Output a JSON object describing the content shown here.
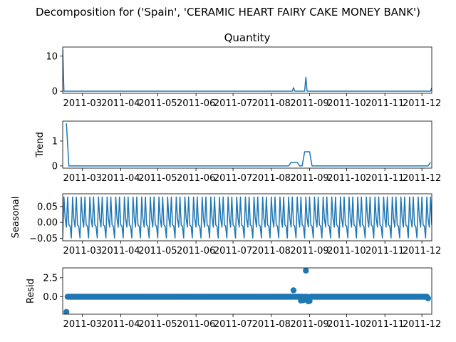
{
  "figure": {
    "suptitle": "Decomposition for ('Spain', 'CERAMIC HEART FAIRY CAKE MONEY BANK')"
  },
  "chart_data": [
    {
      "type": "line",
      "title": "Quantity",
      "ylabel": "",
      "color": "#1f77b4",
      "xlim": [
        "2011-02-13",
        "2011-12-09"
      ],
      "ylim": [
        -0.6,
        12.6
      ],
      "xticks": [
        "2011-03",
        "2011-04",
        "2011-05",
        "2011-06",
        "2011-07",
        "2011-08",
        "2011-09",
        "2011-10",
        "2011-11",
        "2011-12"
      ],
      "yticks": [
        0,
        10
      ],
      "x": [
        "2011-02-13",
        "2011-02-14",
        "2011-08-18",
        "2011-08-19",
        "2011-08-20",
        "2011-08-28",
        "2011-08-29",
        "2011-08-30",
        "2011-12-08",
        "2011-12-09"
      ],
      "y": [
        12,
        0,
        0,
        1,
        0,
        0,
        4,
        0,
        0,
        1
      ]
    },
    {
      "type": "line",
      "title": "",
      "ylabel": "Trend",
      "color": "#1f77b4",
      "xlim": [
        "2011-02-13",
        "2011-12-09"
      ],
      "ylim": [
        -0.09,
        1.8
      ],
      "xticks": [
        "2011-03",
        "2011-04",
        "2011-05",
        "2011-06",
        "2011-07",
        "2011-08",
        "2011-09",
        "2011-10",
        "2011-11",
        "2011-12"
      ],
      "yticks": [
        0,
        1
      ],
      "x": [
        "2011-02-16",
        "2011-02-18",
        "2011-08-15",
        "2011-08-17",
        "2011-08-22",
        "2011-08-24",
        "2011-08-26",
        "2011-08-28",
        "2011-09-01",
        "2011-09-03",
        "2011-12-06",
        "2011-12-08"
      ],
      "y": [
        1.71,
        0,
        0,
        0.14,
        0.14,
        0,
        0,
        0.57,
        0.57,
        0,
        0,
        0.14
      ]
    },
    {
      "type": "line",
      "title": "",
      "ylabel": "Seasonal",
      "color": "#1f77b4",
      "xlim": [
        "2011-02-13",
        "2011-12-09"
      ],
      "ylim": [
        -0.058,
        0.09
      ],
      "xticks": [
        "2011-03",
        "2011-04",
        "2011-05",
        "2011-06",
        "2011-07",
        "2011-08",
        "2011-09",
        "2011-10",
        "2011-11",
        "2011-12"
      ],
      "yticks": [
        -0.05,
        0.0,
        0.05
      ],
      "ytick_labels": [
        "−0.05",
        "0.00",
        "0.05"
      ],
      "x_start": "2011-02-13",
      "x_end": "2011-12-09",
      "period_days": 7,
      "weekly_pattern": [
        -0.049,
        0.08,
        0.012,
        -0.015,
        0.08,
        -0.008,
        -0.012
      ]
    },
    {
      "type": "scatter",
      "title": "",
      "ylabel": "Resid",
      "color": "#1f77b4",
      "xlim": [
        "2011-02-13",
        "2011-12-09"
      ],
      "ylim": [
        -2.3,
        3.8
      ],
      "xticks": [
        "2011-03",
        "2011-04",
        "2011-05",
        "2011-06",
        "2011-07",
        "2011-08",
        "2011-09",
        "2011-10",
        "2011-11",
        "2011-12"
      ],
      "yticks": [
        0.0,
        2.5
      ],
      "ytick_labels": [
        "0.0",
        "2.5"
      ],
      "x_start": "2011-02-16",
      "x_end": "2011-12-06",
      "baseline": 0.0,
      "outliers": [
        {
          "x": "2011-02-16",
          "y": -2.0
        },
        {
          "x": "2011-08-19",
          "y": 0.85
        },
        {
          "x": "2011-08-25",
          "y": -0.5
        },
        {
          "x": "2011-08-27",
          "y": -0.45
        },
        {
          "x": "2011-08-29",
          "y": 3.45
        },
        {
          "x": "2011-08-31",
          "y": -0.6
        },
        {
          "x": "2011-09-01",
          "y": -0.55
        },
        {
          "x": "2011-12-06",
          "y": -0.2
        }
      ]
    }
  ]
}
